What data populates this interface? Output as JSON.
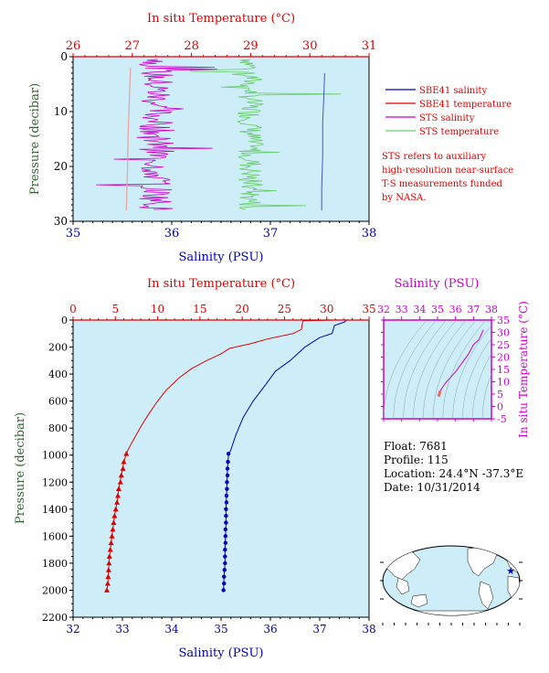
{
  "colors": {
    "salinity": "#0000bb",
    "temperature": "#dd0000",
    "sts_salinity": "#cc00cc",
    "sts_temperature": "#66cc66",
    "plot_bg": "#cdeef8",
    "pressure_axis": "#336633",
    "ts_axis": "#cc00cc"
  },
  "chart_data": [
    {
      "id": "near-surface",
      "type": "line",
      "title": "",
      "top_axis": {
        "label": "In situ Temperature (°C)",
        "range": [
          26,
          31
        ],
        "ticks": [
          "26",
          "27",
          "28",
          "29",
          "30",
          "31"
        ]
      },
      "bottom_axis": {
        "label": "Salinity (PSU)",
        "range": [
          35,
          38
        ],
        "ticks": [
          "35",
          "36",
          "37",
          "38"
        ]
      },
      "y_axis": {
        "label": "Pressure (decibar)",
        "range": [
          0,
          30
        ],
        "inverted": true,
        "ticks": [
          "0",
          "10",
          "20",
          "30"
        ]
      },
      "series": [
        {
          "name": "SBE41 salinity",
          "axis": "bottom",
          "points": [
            [
              37.55,
              3
            ],
            [
              37.54,
              8
            ],
            [
              37.53,
              12
            ],
            [
              37.53,
              18
            ],
            [
              37.52,
              24
            ],
            [
              37.52,
              28
            ]
          ]
        },
        {
          "name": "SBE41 temperature",
          "axis": "top",
          "points": [
            [
              26.97,
              2
            ],
            [
              26.95,
              8
            ],
            [
              26.93,
              14
            ],
            [
              26.92,
              20
            ],
            [
              26.91,
              24
            ],
            [
              26.9,
              28
            ]
          ]
        },
        {
          "name": "STS salinity",
          "axis": "bottom",
          "base": 35.85,
          "spread": 0.18,
          "range": [
            0.5,
            28
          ]
        },
        {
          "name": "STS temperature",
          "axis": "top",
          "base": 29.0,
          "spread": 0.22,
          "range": [
            0.5,
            28
          ]
        }
      ],
      "legend": {
        "placement": "right",
        "entries": [
          {
            "name": "SBE41 salinity",
            "color": "#0000bb"
          },
          {
            "name": "SBE41 temperature",
            "color": "#dd0000"
          },
          {
            "name": "STS salinity",
            "color": "#cc00cc"
          },
          {
            "name": "STS temperature",
            "color": "#66cc66"
          }
        ]
      },
      "note": [
        "STS refers to auxiliary",
        "high-resolution near-surface",
        "T-S measurements funded",
        "by NASA."
      ]
    },
    {
      "id": "full-profile",
      "type": "line",
      "title": "",
      "top_axis": {
        "label": "In situ Temperature (°C)",
        "range": [
          0,
          35
        ],
        "ticks": [
          "0",
          "5",
          "10",
          "15",
          "20",
          "25",
          "30",
          "35"
        ]
      },
      "bottom_axis": {
        "label": "Salinity (PSU)",
        "range": [
          32,
          38
        ],
        "ticks": [
          "32",
          "33",
          "34",
          "35",
          "36",
          "37",
          "38"
        ]
      },
      "y_axis": {
        "label": "Pressure (decibar)",
        "range": [
          0,
          2200
        ],
        "inverted": true,
        "ticks": [
          "0",
          "200",
          "400",
          "600",
          "800",
          "1000",
          "1200",
          "1400",
          "1600",
          "1800",
          "2000",
          "2200"
        ]
      },
      "series": [
        {
          "name": "Temperature",
          "axis": "top",
          "points": [
            [
              31,
              0
            ],
            [
              27.2,
              5
            ],
            [
              27.1,
              30
            ],
            [
              27.0,
              70
            ],
            [
              26.0,
              100
            ],
            [
              23.0,
              140
            ],
            [
              21.0,
              175
            ],
            [
              18.5,
              210
            ],
            [
              17.5,
              250
            ],
            [
              15.8,
              300
            ],
            [
              14.0,
              360
            ],
            [
              12.5,
              430
            ],
            [
              11.0,
              520
            ],
            [
              10.0,
              600
            ],
            [
              9.0,
              690
            ],
            [
              8.0,
              790
            ],
            [
              7.2,
              880
            ],
            [
              6.5,
              960
            ],
            [
              6.3,
              990
            ],
            [
              6.0,
              1050
            ],
            [
              5.7,
              1150
            ],
            [
              5.4,
              1250
            ],
            [
              5.2,
              1350
            ],
            [
              4.9,
              1450
            ],
            [
              4.7,
              1550
            ],
            [
              4.5,
              1650
            ],
            [
              4.3,
              1750
            ],
            [
              4.2,
              1850
            ],
            [
              4.1,
              1950
            ],
            [
              4.0,
              2000
            ]
          ],
          "marker_points": [
            [
              6.3,
              990
            ],
            [
              6.0,
              1050
            ],
            [
              5.9,
              1100
            ],
            [
              5.7,
              1150
            ],
            [
              5.6,
              1200
            ],
            [
              5.4,
              1250
            ],
            [
              5.3,
              1300
            ],
            [
              5.2,
              1350
            ],
            [
              5.05,
              1400
            ],
            [
              4.9,
              1450
            ],
            [
              4.8,
              1500
            ],
            [
              4.7,
              1550
            ],
            [
              4.6,
              1600
            ],
            [
              4.5,
              1650
            ],
            [
              4.4,
              1700
            ],
            [
              4.3,
              1750
            ],
            [
              4.25,
              1800
            ],
            [
              4.2,
              1850
            ],
            [
              4.15,
              1900
            ],
            [
              4.1,
              1950
            ],
            [
              4.0,
              2000
            ]
          ]
        },
        {
          "name": "Salinity",
          "axis": "bottom",
          "points": [
            [
              37.55,
              0
            ],
            [
              37.5,
              15
            ],
            [
              37.3,
              40
            ],
            [
              37.25,
              100
            ],
            [
              37.0,
              130
            ],
            [
              36.7,
              200
            ],
            [
              36.4,
              300
            ],
            [
              36.1,
              380
            ],
            [
              35.9,
              480
            ],
            [
              35.65,
              600
            ],
            [
              35.45,
              720
            ],
            [
              35.3,
              850
            ],
            [
              35.2,
              960
            ],
            [
              35.15,
              1000
            ],
            [
              35.13,
              1100
            ],
            [
              35.12,
              1200
            ],
            [
              35.11,
              1300
            ],
            [
              35.1,
              1400
            ],
            [
              35.1,
              1500
            ],
            [
              35.09,
              1600
            ],
            [
              35.08,
              1700
            ],
            [
              35.08,
              1800
            ],
            [
              35.06,
              1900
            ],
            [
              35.05,
              2000
            ]
          ],
          "marker_points": [
            [
              35.15,
              990
            ],
            [
              35.14,
              1050
            ],
            [
              35.13,
              1100
            ],
            [
              35.13,
              1150
            ],
            [
              35.12,
              1200
            ],
            [
              35.12,
              1250
            ],
            [
              35.11,
              1300
            ],
            [
              35.11,
              1350
            ],
            [
              35.1,
              1400
            ],
            [
              35.1,
              1450
            ],
            [
              35.1,
              1500
            ],
            [
              35.09,
              1550
            ],
            [
              35.09,
              1600
            ],
            [
              35.09,
              1650
            ],
            [
              35.08,
              1700
            ],
            [
              35.08,
              1750
            ],
            [
              35.08,
              1800
            ],
            [
              35.07,
              1850
            ],
            [
              35.06,
              1900
            ],
            [
              35.06,
              1950
            ],
            [
              35.05,
              2000
            ]
          ]
        }
      ]
    },
    {
      "id": "ts-diagram",
      "type": "line",
      "title": "",
      "top_axis": {
        "label": "Salinity (PSU)",
        "range": [
          32,
          38
        ],
        "ticks": [
          "32",
          "33",
          "34",
          "35",
          "36",
          "37",
          "38"
        ]
      },
      "right_axis": {
        "label": "In situ Temperature (°C)",
        "range": [
          -5,
          35
        ],
        "ticks": [
          "-5",
          "0",
          "5",
          "10",
          "15",
          "20",
          "25",
          "30",
          "35"
        ]
      },
      "series": [
        {
          "name": "T-S",
          "points": [
            [
              35.15,
              6.3
            ],
            [
              35.3,
              8
            ],
            [
              35.5,
              10
            ],
            [
              35.75,
              12
            ],
            [
              36.0,
              14
            ],
            [
              36.2,
              16
            ],
            [
              36.4,
              18
            ],
            [
              36.7,
              21
            ],
            [
              37.0,
              25
            ],
            [
              37.3,
              27
            ],
            [
              37.55,
              31
            ]
          ]
        },
        {
          "name": "T-S deep",
          "points": [
            [
              35.05,
              4.0
            ],
            [
              35.1,
              5.0
            ],
            [
              35.12,
              5.6
            ],
            [
              35.15,
              6.3
            ]
          ]
        }
      ]
    }
  ],
  "float_info": {
    "float": "Float:  7681",
    "profile": "Profile:  115",
    "location": "Location:  24.4°N  -37.3°E",
    "date": "Date:  10/31/2014"
  },
  "map": {
    "marker_lat": 24.4,
    "marker_lon": -37.3
  }
}
